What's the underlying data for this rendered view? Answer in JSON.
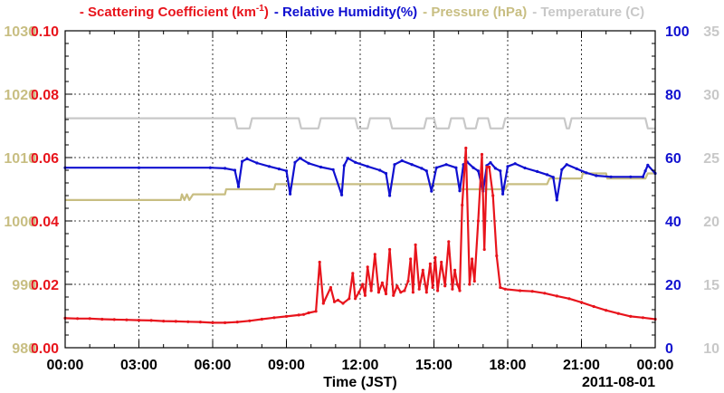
{
  "legend": [
    {
      "text": "- Scattering Coefficient (km",
      "sup": "-1",
      "close": ")",
      "color": "#e8141c"
    },
    {
      "text": "- Relative Humidity(%)",
      "color": "#1010d0"
    },
    {
      "text": "- Pressure (hPa)",
      "color": "#c8be82"
    },
    {
      "text": "- Temperature (C)",
      "color": "#c8c8c8"
    }
  ],
  "chart_data": {
    "type": "line",
    "xlabel": "Time (JST)",
    "date_label": "2011-08-01",
    "x_ticks": [
      "00:00",
      "03:00",
      "06:00",
      "09:00",
      "12:00",
      "15:00",
      "18:00",
      "21:00",
      "00:00"
    ],
    "xlim": [
      0,
      24
    ],
    "grid": true,
    "axes": {
      "scattering": {
        "range": [
          0,
          0.1
        ],
        "ticks": [
          "0.00",
          "0.02",
          "0.04",
          "0.06",
          "0.08",
          "0.10"
        ],
        "color": "#e8141c"
      },
      "pressure": {
        "range": [
          980,
          1030
        ],
        "ticks": [
          "980",
          "990",
          "1000",
          "1010",
          "1020",
          "1030"
        ],
        "color": "#c8be82"
      },
      "humidity": {
        "range": [
          0,
          100
        ],
        "ticks": [
          "0",
          "20",
          "40",
          "60",
          "80",
          "100"
        ],
        "color": "#1010d0"
      },
      "temperature": {
        "range": [
          10,
          35
        ],
        "ticks": [
          "10",
          "15",
          "20",
          "25",
          "30",
          "35"
        ],
        "color": "#c8c8c8"
      }
    },
    "series": [
      {
        "name": "Temperature (C)",
        "axis": "temperature",
        "color": "#c8c8c8",
        "markers": false,
        "x": [
          0,
          6.9,
          7.0,
          7.5,
          7.6,
          9.5,
          9.6,
          10.3,
          10.4,
          11.8,
          11.9,
          12.3,
          12.4,
          13.2,
          13.3,
          14.6,
          14.7,
          15.0,
          15.1,
          15.6,
          15.7,
          16.2,
          16.3,
          16.7,
          16.8,
          17.2,
          17.3,
          17.8,
          17.9,
          20.3,
          20.4,
          20.5,
          20.6,
          23.6,
          23.7,
          24
        ],
        "y": [
          28.1,
          28.1,
          27.3,
          27.3,
          28.1,
          28.1,
          27.3,
          27.3,
          28.1,
          28.1,
          27.3,
          27.3,
          28.1,
          28.1,
          27.3,
          27.3,
          28.1,
          28.1,
          27.3,
          27.3,
          28.1,
          28.1,
          27.3,
          27.3,
          28.1,
          28.1,
          27.3,
          27.3,
          28.1,
          28.1,
          27.3,
          27.3,
          28.1,
          28.1,
          27.3,
          27.3
        ]
      },
      {
        "name": "Pressure (hPa)",
        "axis": "pressure",
        "color": "#c8be82",
        "markers": false,
        "x": [
          0,
          4.7,
          4.75,
          4.85,
          4.95,
          5.05,
          5.2,
          6.5,
          6.55,
          8.5,
          8.55,
          16.0,
          16.1,
          17.9,
          18.0,
          19.6,
          19.7,
          21.0,
          21.05,
          22.0,
          22.05,
          23.6,
          23.7,
          24
        ],
        "y": [
          1003.3,
          1003.3,
          1004.2,
          1003.3,
          1004.2,
          1003.3,
          1004.2,
          1004.2,
          1005.0,
          1005.0,
          1005.8,
          1005.8,
          1005.0,
          1005.0,
          1005.8,
          1005.8,
          1006.7,
          1006.7,
          1007.5,
          1007.5,
          1006.7,
          1006.7,
          1007.5,
          1007.5
        ]
      },
      {
        "name": "Relative Humidity(%)",
        "axis": "humidity",
        "color": "#1010d0",
        "markers": true,
        "x": [
          0,
          3,
          5.9,
          6.5,
          6.9,
          7.05,
          7.2,
          7.4,
          7.8,
          8.3,
          8.7,
          9.0,
          9.15,
          9.35,
          9.55,
          9.9,
          10.4,
          10.9,
          11.25,
          11.35,
          11.5,
          11.8,
          12.3,
          12.8,
          13.05,
          13.2,
          13.4,
          13.7,
          14.1,
          14.5,
          14.7,
          14.9,
          15.1,
          15.5,
          15.9,
          16.05,
          16.2,
          16.35,
          16.6,
          16.8,
          17.0,
          17.15,
          17.3,
          17.5,
          17.7,
          17.8,
          18.0,
          18.3,
          18.7,
          19.2,
          19.6,
          19.85,
          20.0,
          20.2,
          20.4,
          20.8,
          21.2,
          21.6,
          22.2,
          23.0,
          23.5,
          23.6,
          23.7,
          24
        ],
        "y": [
          56.8,
          56.8,
          56.8,
          56.6,
          56.0,
          50.8,
          58.8,
          59.6,
          58.3,
          57.2,
          56.4,
          55.8,
          48.5,
          58.5,
          59.8,
          58.2,
          57.0,
          56.2,
          48.2,
          57.5,
          59.8,
          58.5,
          57.2,
          56.0,
          55.0,
          48.0,
          57.8,
          59.0,
          57.8,
          56.6,
          55.8,
          49.4,
          56.8,
          57.8,
          56.8,
          49.5,
          57.8,
          58.6,
          56.8,
          55.8,
          49.4,
          57.5,
          58.4,
          56.6,
          55.8,
          48.5,
          57.2,
          58.1,
          56.7,
          55.6,
          54.6,
          53.8,
          46.6,
          56.2,
          57.8,
          56.5,
          55.2,
          54.3,
          53.9,
          53.9,
          53.9,
          55.8,
          57.6,
          55.0
        ]
      },
      {
        "name": "Scattering Coefficient",
        "axis": "scattering",
        "color": "#e8141c",
        "markers": true,
        "x": [
          0,
          0.5,
          1.0,
          1.5,
          2.0,
          2.5,
          3.0,
          3.5,
          4.0,
          4.5,
          5.0,
          5.5,
          6.0,
          6.5,
          7.0,
          7.5,
          8.0,
          8.5,
          9.0,
          9.5,
          9.7,
          9.9,
          10.2,
          10.35,
          10.5,
          10.8,
          10.95,
          11.1,
          11.3,
          11.55,
          11.7,
          11.8,
          11.95,
          12.1,
          12.2,
          12.3,
          12.45,
          12.6,
          12.75,
          12.9,
          13.05,
          13.2,
          13.35,
          13.5,
          13.65,
          13.8,
          13.95,
          14.05,
          14.15,
          14.25,
          14.4,
          14.55,
          14.7,
          14.85,
          14.95,
          15.05,
          15.15,
          15.3,
          15.45,
          15.6,
          15.75,
          15.85,
          15.95,
          16.05,
          16.15,
          16.3,
          16.45,
          16.55,
          16.65,
          16.8,
          16.95,
          17.05,
          17.15,
          17.25,
          17.4,
          17.55,
          17.7,
          17.9,
          18.5,
          19.0,
          19.5,
          20.0,
          20.5,
          21.0,
          21.5,
          22.0,
          22.5,
          23.0,
          23.5,
          24.0
        ],
        "y": [
          0.0093,
          0.0092,
          0.0092,
          0.009,
          0.0089,
          0.0088,
          0.0087,
          0.0086,
          0.0084,
          0.0083,
          0.0082,
          0.0081,
          0.0079,
          0.0079,
          0.0081,
          0.0085,
          0.009,
          0.0095,
          0.0099,
          0.0103,
          0.0105,
          0.011,
          0.0115,
          0.027,
          0.014,
          0.019,
          0.0145,
          0.015,
          0.014,
          0.0155,
          0.0235,
          0.0155,
          0.0175,
          0.02,
          0.0165,
          0.0255,
          0.018,
          0.0295,
          0.0175,
          0.0205,
          0.017,
          0.031,
          0.0165,
          0.0195,
          0.0175,
          0.018,
          0.021,
          0.028,
          0.0175,
          0.0325,
          0.0185,
          0.0245,
          0.0175,
          0.0265,
          0.019,
          0.0285,
          0.018,
          0.027,
          0.0195,
          0.0335,
          0.0185,
          0.0245,
          0.02,
          0.018,
          0.045,
          0.063,
          0.02,
          0.028,
          0.021,
          0.04,
          0.061,
          0.031,
          0.057,
          0.057,
          0.048,
          0.029,
          0.019,
          0.0185,
          0.018,
          0.0178,
          0.0172,
          0.0163,
          0.0155,
          0.0143,
          0.013,
          0.0118,
          0.0108,
          0.0099,
          0.0095,
          0.009
        ]
      }
    ]
  }
}
